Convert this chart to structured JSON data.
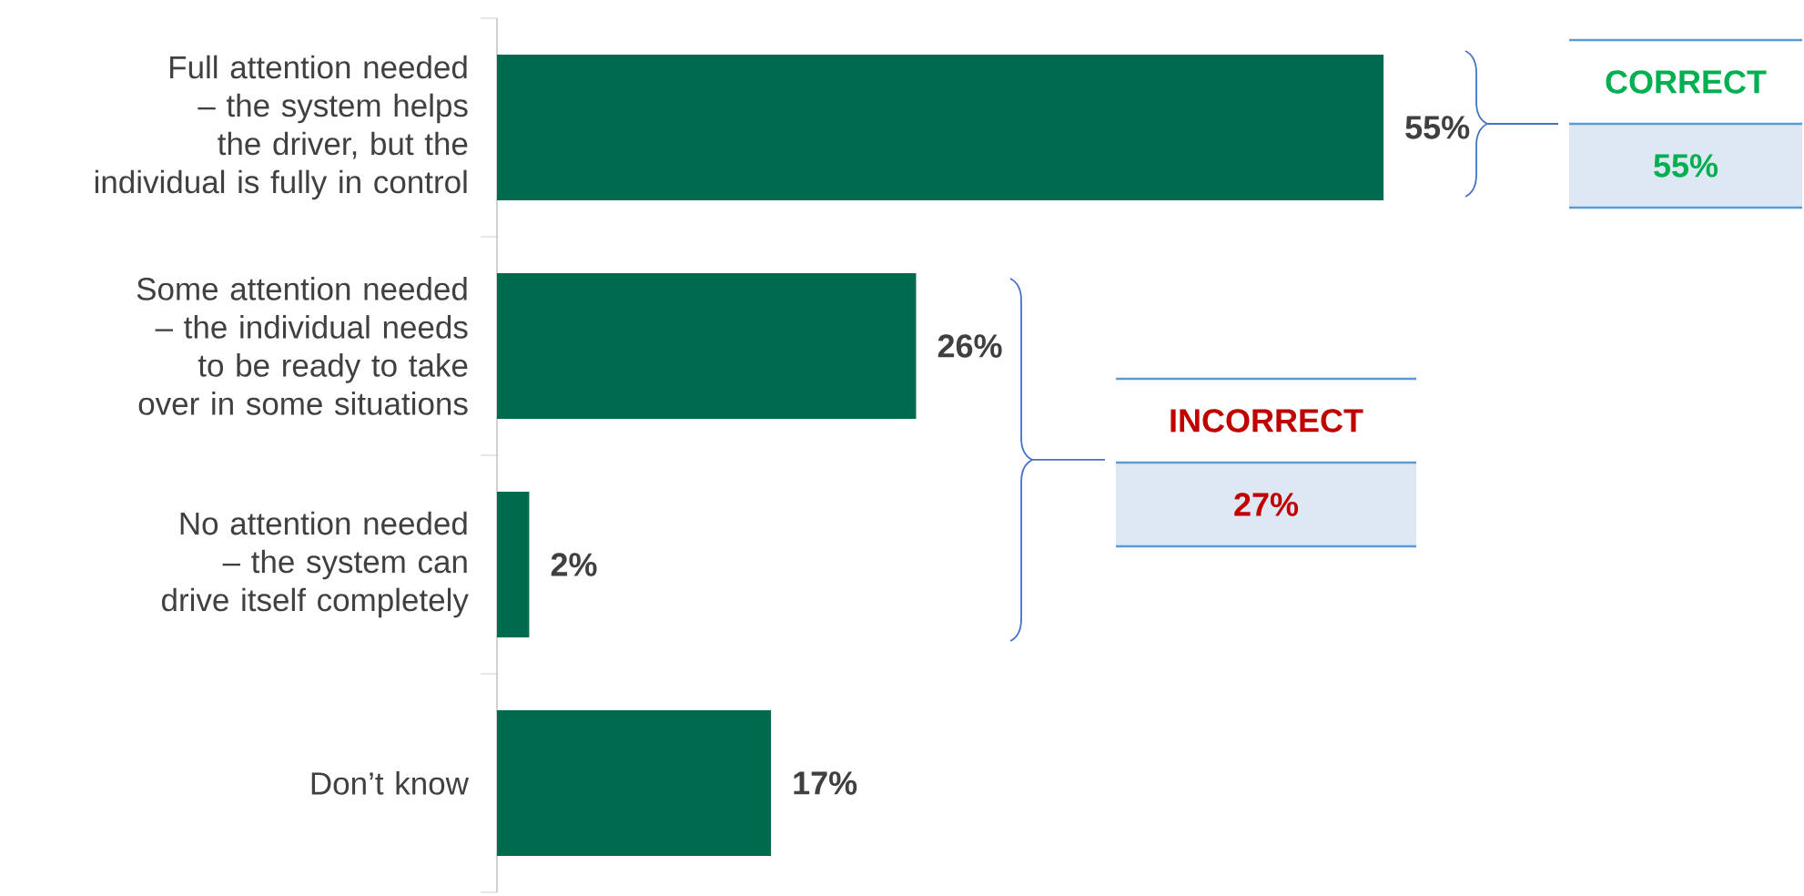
{
  "chart_data": {
    "type": "bar",
    "orientation": "horizontal",
    "categories": [
      "Full attention needed – the system helps the driver, but the individual is fully in control",
      "Some attention needed – the individual needs to be ready to take over in some situations",
      "No attention needed – the system can drive itself completely",
      "Don’t know"
    ],
    "values": [
      55,
      26,
      2,
      17
    ],
    "value_labels": [
      "55%",
      "26%",
      "2%",
      "17%"
    ],
    "color": "#006a4e",
    "tick_labels": "y",
    "annotations": [
      "CORRECT",
      "55%",
      "INCORRECT",
      "27%"
    ]
  }
}
